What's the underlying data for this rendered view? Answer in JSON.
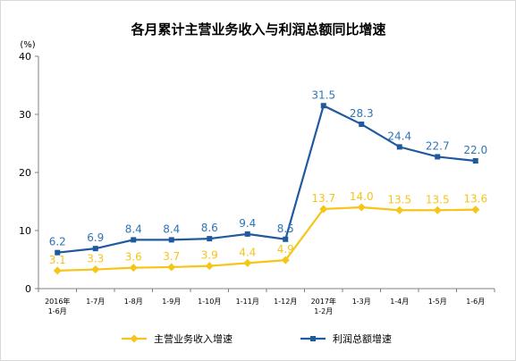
{
  "chart_data": {
    "type": "line",
    "title": "各月累计主营业务收入与利润总额同比增速",
    "unit_label": "(%)",
    "ylim": [
      0,
      40
    ],
    "yticks": [
      "0",
      "10",
      "20",
      "30",
      "40"
    ],
    "categories": [
      [
        "2016年",
        "1-6月"
      ],
      [
        "1-7月"
      ],
      [
        "1-8月"
      ],
      [
        "1-9月"
      ],
      [
        "1-10月"
      ],
      [
        "1-11月"
      ],
      [
        "1-12月"
      ],
      [
        "2017年",
        "1-2月"
      ],
      [
        "1-3月"
      ],
      [
        "1-4月"
      ],
      [
        "1-5月"
      ],
      [
        "1-6月"
      ]
    ],
    "series": [
      {
        "name": "主营业务收入增速",
        "color": "#f5c518",
        "label_color": "#f5c518",
        "marker": "diamond",
        "values": [
          3.1,
          3.3,
          3.6,
          3.7,
          3.9,
          4.4,
          4.9,
          13.7,
          14.0,
          13.5,
          13.5,
          13.6
        ],
        "labels": [
          "3.1",
          "3.3",
          "3.6",
          "3.7",
          "3.9",
          "4.4",
          "4.9",
          "13.7",
          "14.0",
          "13.5",
          "13.5",
          "13.6"
        ]
      },
      {
        "name": "利润总额增速",
        "color": "#1f5a9e",
        "label_color": "#2e75b6",
        "marker": "square",
        "values": [
          6.2,
          6.9,
          8.4,
          8.4,
          8.6,
          9.4,
          8.5,
          31.5,
          28.3,
          24.4,
          22.7,
          22.0
        ],
        "labels": [
          "6.2",
          "6.9",
          "8.4",
          "8.4",
          "8.6",
          "9.4",
          "8.5",
          "31.5",
          "28.3",
          "24.4",
          "22.7",
          "22.0"
        ]
      }
    ],
    "legend_position": "bottom",
    "grid": false
  }
}
